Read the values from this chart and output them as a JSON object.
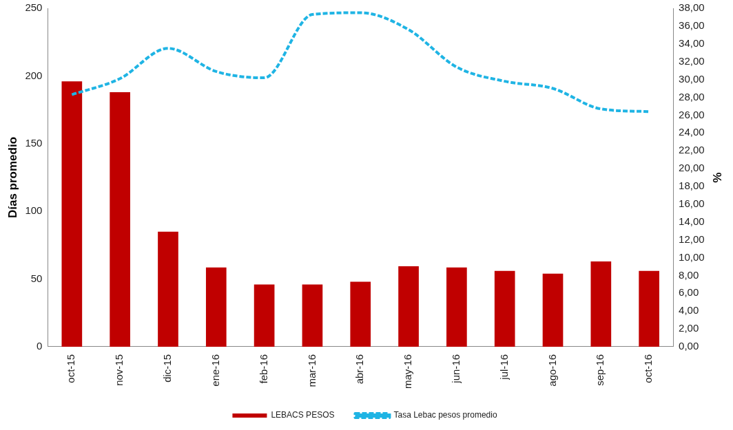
{
  "chart_data": {
    "type": "bar",
    "ylabel": "Días promedio",
    "y2label": "%",
    "categories": [
      "oct-15",
      "nov-15",
      "dic-15",
      "ene-16",
      "feb-16",
      "mar-16",
      "abr-16",
      "may-16",
      "jun-16",
      "jul-16",
      "ago-16",
      "sep-16",
      "oct-16"
    ],
    "series": [
      {
        "name": "LEBACS PESOS",
        "color": "#c00000",
        "values": [
          196,
          188,
          85,
          58.5,
          46,
          46,
          48,
          59.5,
          58.5,
          56,
          54,
          63,
          56
        ]
      },
      {
        "name": "Tasa Lebac pesos promedio",
        "type": "line",
        "axis": "y2",
        "color": "#1fb4e4",
        "line_style": "dashed",
        "marker": "none",
        "values": [
          28.3,
          30.1,
          33.5,
          30.9,
          30.2,
          37.3,
          37.5,
          35.6,
          31.4,
          29.8,
          29.0,
          26.7,
          26.4
        ]
      }
    ],
    "ylim": [
      0,
      250
    ],
    "yticks": [
      0,
      50,
      100,
      150,
      200,
      250
    ],
    "y2lim": [
      0,
      38
    ],
    "y2ticks": [
      {
        "value": 0,
        "label": "0,00"
      },
      {
        "value": 2,
        "label": "2,00"
      },
      {
        "value": 4,
        "label": "4,00"
      },
      {
        "value": 6,
        "label": "6,00"
      },
      {
        "value": 8,
        "label": "8,00"
      },
      {
        "value": 10,
        "label": "10,00"
      },
      {
        "value": 12,
        "label": "12,00"
      },
      {
        "value": 14,
        "label": "14,00"
      },
      {
        "value": 16,
        "label": "16,00"
      },
      {
        "value": 18,
        "label": "18,00"
      },
      {
        "value": 20,
        "label": "20,00"
      },
      {
        "value": 22,
        "label": "22,00"
      },
      {
        "value": 24,
        "label": "24,00"
      },
      {
        "value": 26,
        "label": "26,00"
      },
      {
        "value": 28,
        "label": "28,00"
      },
      {
        "value": 30,
        "label": "30,00"
      },
      {
        "value": 32,
        "label": "32,00"
      },
      {
        "value": 34,
        "label": "34,00"
      },
      {
        "value": 36,
        "label": "36,00"
      },
      {
        "value": 38,
        "label": "38,00"
      }
    ],
    "grid": false,
    "legend": "bottom"
  }
}
